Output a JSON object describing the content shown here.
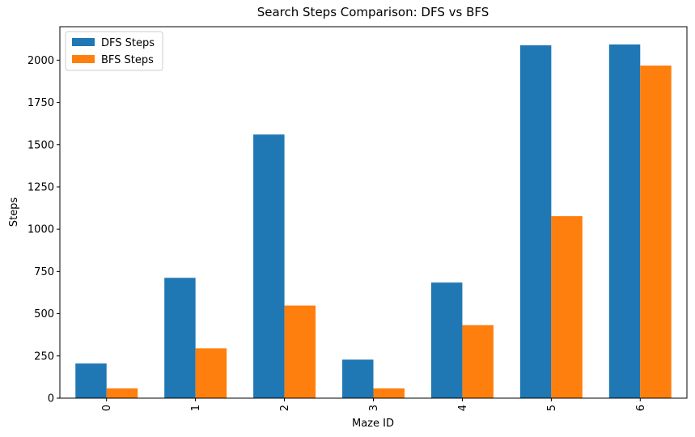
{
  "chart_data": {
    "type": "bar",
    "title": "Search Steps Comparison: DFS vs BFS",
    "xlabel": "Maze ID",
    "ylabel": "Steps",
    "categories": [
      "0",
      "1",
      "2",
      "3",
      "4",
      "5",
      "6"
    ],
    "series": [
      {
        "name": "DFS Steps",
        "color": "#1f77b4",
        "values": [
          205,
          712,
          1560,
          228,
          684,
          2088,
          2093
        ]
      },
      {
        "name": "BFS Steps",
        "color": "#ff7f0e",
        "values": [
          58,
          295,
          548,
          58,
          432,
          1077,
          1968
        ]
      }
    ],
    "ylim": [
      0,
      2198
    ],
    "yticks": [
      0,
      250,
      500,
      750,
      1000,
      1250,
      1500,
      1750,
      2000
    ],
    "grid": false,
    "legend": "top-left"
  }
}
